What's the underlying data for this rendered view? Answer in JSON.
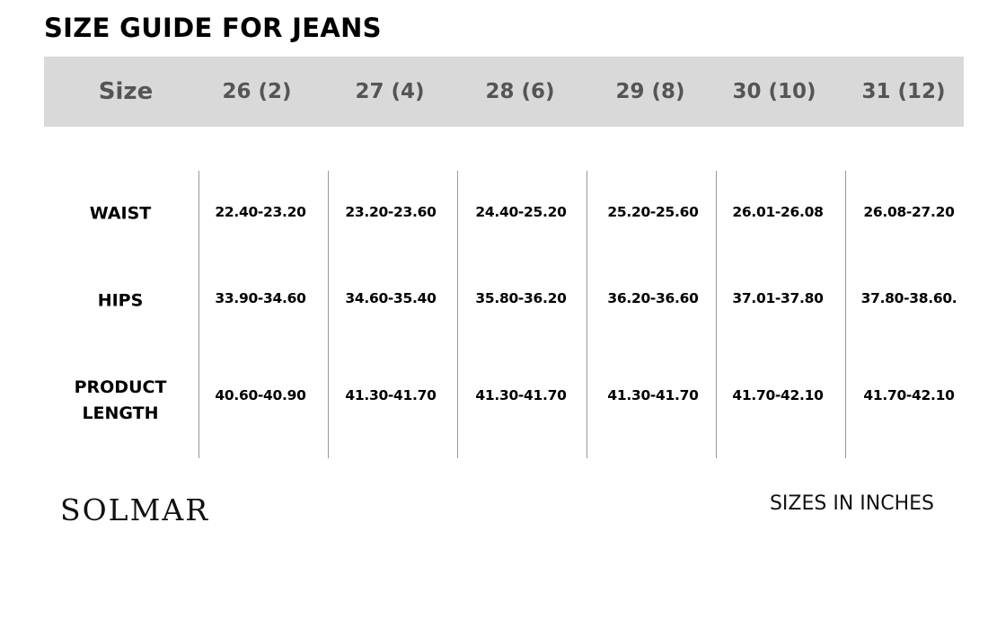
{
  "title": "SIZE GUIDE FOR JEANS",
  "header": {
    "label": "Size",
    "sizes": [
      "26 (2)",
      "27 (4)",
      "28 (6)",
      "29 (8)",
      "30 (10)",
      "31 (12)"
    ]
  },
  "rows": [
    {
      "label": "WAIST",
      "values": [
        "22.40-23.20",
        "23.20-23.60",
        "24.40-25.20",
        "25.20-25.60",
        "26.01-26.08",
        "26.08-27.20"
      ]
    },
    {
      "label": "HIPS",
      "values": [
        "33.90-34.60",
        "34.60-35.40",
        "35.80-36.20",
        "36.20-36.60",
        "37.01-37.80",
        "37.80-38.60."
      ]
    },
    {
      "label": "PRODUCT LENGTH",
      "values": [
        "40.60-40.90",
        "41.30-41.70",
        "41.30-41.70",
        "41.30-41.70",
        "41.70-42.10",
        "41.70-42.10"
      ]
    }
  ],
  "brand": "SOLMAR",
  "unit_note": "SIZES IN INCHES",
  "colors": {
    "header_bg": "#d9d9d9",
    "header_text": "#555555"
  }
}
